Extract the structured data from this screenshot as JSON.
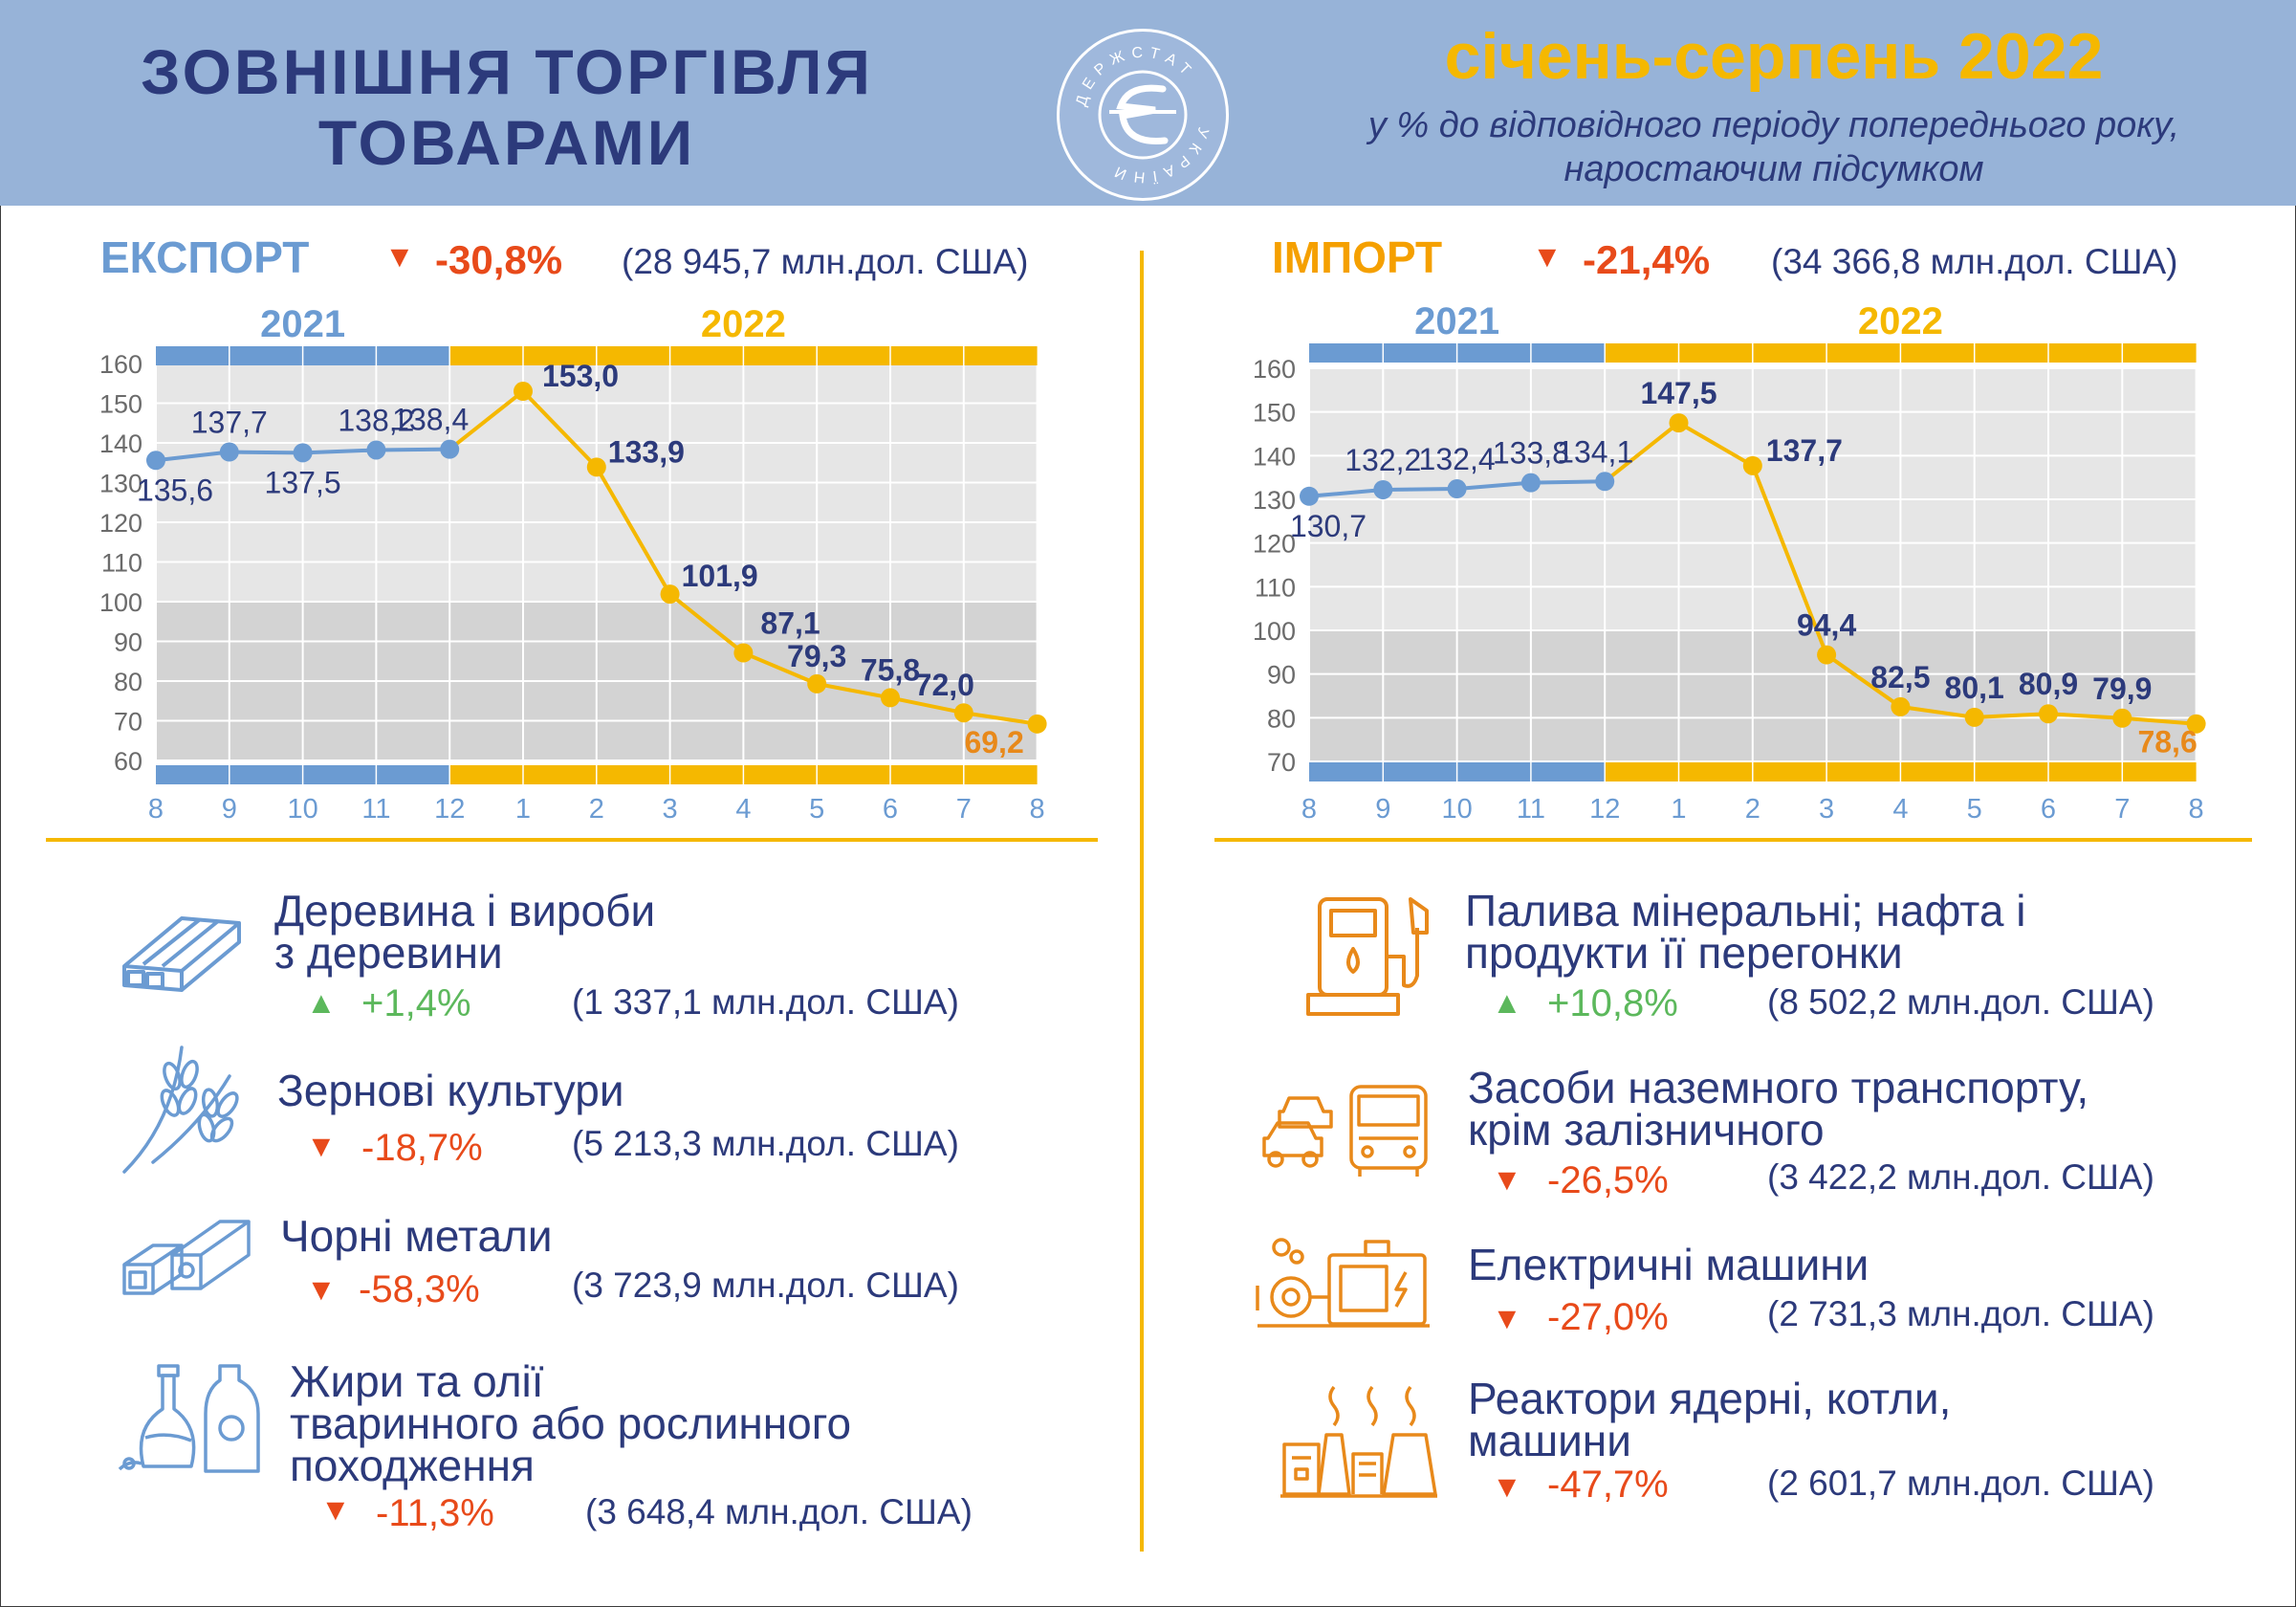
{
  "header": {
    "title": "ЗОВНІШНЯ ТОРГІВЛЯ ТОВАРАМИ",
    "title_line1": "ЗОВНІШНЯ ТОРГІВЛЯ",
    "title_line2": "ТОВАРАМИ",
    "period": "січень-серпень 2022",
    "subtitle_line1": "у % до відповідного періоду попереднього року,",
    "subtitle_line2": "наростаючим підсумком",
    "logo_text": "ДЕРЖСТАТ УКРАЇНИ"
  },
  "colors": {
    "blue": "#6b9bd2",
    "yellow": "#f5b800",
    "navy": "#2c3a7b",
    "orange": "#e8891a",
    "red": "#e84a1a",
    "green": "#5cb85c"
  },
  "export": {
    "title": "ЕКСПОРТ",
    "change": "-30,8%",
    "amount": "(28 945,7 млн.дол. США)"
  },
  "import": {
    "title": "ІМПОРТ",
    "change": "-21,4%",
    "amount": "(34 366,8 млн.дол. США)"
  },
  "chart_data": [
    {
      "type": "line",
      "title": "ЕКСПОРТ",
      "year_labels": [
        "2021",
        "2022"
      ],
      "categories": [
        "8",
        "9",
        "10",
        "11",
        "12",
        "1",
        "2",
        "3",
        "4",
        "5",
        "6",
        "7",
        "8"
      ],
      "values": [
        135.6,
        137.7,
        137.5,
        138.2,
        138.4,
        153.0,
        133.9,
        101.9,
        87.1,
        79.3,
        75.8,
        72.0,
        69.2
      ],
      "labels": [
        "135,6",
        "137,7",
        "137,5",
        "138,2",
        "138,4",
        "153,0",
        "133,9",
        "101,9",
        "87,1",
        "79,3",
        "75,8",
        "72,0",
        "69,2"
      ],
      "yticks": [
        "60",
        "70",
        "80",
        "90",
        "100",
        "110",
        "120",
        "130",
        "140",
        "150",
        "160"
      ],
      "ylim": [
        60,
        160
      ]
    },
    {
      "type": "line",
      "title": "ІМПОРТ",
      "year_labels": [
        "2021",
        "2022"
      ],
      "categories": [
        "8",
        "9",
        "10",
        "11",
        "12",
        "1",
        "2",
        "3",
        "4",
        "5",
        "6",
        "7",
        "8"
      ],
      "values": [
        130.7,
        132.2,
        132.4,
        133.8,
        134.1,
        147.5,
        137.7,
        94.4,
        82.5,
        80.1,
        80.9,
        79.9,
        78.6
      ],
      "labels": [
        "130,7",
        "132,2",
        "132,4",
        "133,8",
        "134,1",
        "147,5",
        "137,7",
        "94,4",
        "82,5",
        "80,1",
        "80,9",
        "79,9",
        "78,6"
      ],
      "yticks": [
        "70",
        "80",
        "90",
        "100",
        "110",
        "120",
        "130",
        "140",
        "150",
        "160"
      ],
      "ylim": [
        70,
        160
      ]
    }
  ],
  "export_items": [
    {
      "icon": "wood-icon",
      "name_line1": "Деревина і вироби",
      "name_line2": "з деревини",
      "name_line3": "",
      "direction": "up",
      "change": "+1,4%",
      "amount": "(1 337,1 млн.дол. США)"
    },
    {
      "icon": "wheat-icon",
      "name_line1": "Зернові культури",
      "name_line2": "",
      "name_line3": "",
      "direction": "down",
      "change": "-18,7%",
      "amount": "(5 213,3 млн.дол. США)"
    },
    {
      "icon": "metal-beams-icon",
      "name_line1": "Чорні метали",
      "name_line2": "",
      "name_line3": "",
      "direction": "down",
      "change": "-58,3%",
      "amount": "(3 723,9 млн.дол. США)"
    },
    {
      "icon": "oil-bottle-icon",
      "name_line1": "Жири та олії",
      "name_line2": "тваринного або рослинного",
      "name_line3": "походження",
      "direction": "down",
      "change": "-11,3%",
      "amount": "(3 648,4 млн.дол. США)"
    }
  ],
  "import_items": [
    {
      "icon": "fuel-pump-icon",
      "name_line1": "Палива мінеральні; нафта і",
      "name_line2": "продукти її перегонки",
      "direction": "up",
      "change": "+10,8%",
      "amount": "(8 502,2 млн.дол. США)"
    },
    {
      "icon": "vehicles-icon",
      "name_line1": "Засоби наземного транспорту,",
      "name_line2": "крім залізничного",
      "direction": "down",
      "change": "-26,5%",
      "amount": "(3 422,2 млн.дол. США)"
    },
    {
      "icon": "generator-icon",
      "name_line1": "Електричні машини",
      "name_line2": "",
      "direction": "down",
      "change": "-27,0%",
      "amount": "(2 731,3 млн.дол. США)"
    },
    {
      "icon": "power-plant-icon",
      "name_line1": "Реактори ядерні, котли,",
      "name_line2": "машини",
      "direction": "down",
      "change": "-47,7%",
      "amount": "(2 601,7 млн.дол. США)"
    }
  ]
}
